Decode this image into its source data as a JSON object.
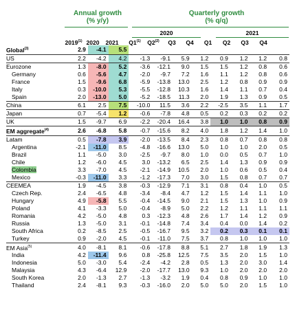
{
  "header": {
    "annual_title": "Annual growth\n(% y/y)",
    "quarterly_title": "Quarterly growth\n(% q/q)",
    "year_2020": "2020",
    "year_2021": "2021",
    "annual_cols": [
      {
        "label": "2019",
        "note": "(1)"
      },
      {
        "label": "2020",
        "note": ""
      },
      {
        "label": "2021",
        "note": ""
      }
    ],
    "quarter_cols": [
      {
        "label": "Q1",
        "note": "(1)"
      },
      {
        "label": "Q2",
        "note": "(2)"
      },
      {
        "label": "Q3",
        "note": ""
      },
      {
        "label": "Q4",
        "note": ""
      },
      {
        "label": "Q1",
        "note": ""
      },
      {
        "label": "Q2",
        "note": ""
      },
      {
        "label": "Q3",
        "note": ""
      },
      {
        "label": "Q4",
        "note": ""
      }
    ]
  },
  "rows": [
    {
      "label": "Global",
      "note": "(3)",
      "bold": true,
      "indent": false,
      "vals": [
        "2.9",
        "-4.1",
        "5.5",
        "",
        "",
        "",
        "",
        "",
        "",
        "",
        ""
      ]
    },
    {
      "label": "US",
      "note": "",
      "bold": false,
      "indent": false,
      "border": true,
      "vals": [
        "2.2",
        "-4.2",
        "4.2",
        "-1.3",
        "-9.1",
        "5.9",
        "1.2",
        "0.9",
        "1.2",
        "1.2",
        "0.8"
      ]
    },
    {
      "label": "Eurozone",
      "note": "",
      "bold": false,
      "indent": false,
      "border": true,
      "vals": [
        "1.3",
        "-8.0",
        "5.2",
        "-3.6",
        "-12.1",
        "9.0",
        "1.5",
        "1.5",
        "1.2",
        "0.8",
        "0.6"
      ]
    },
    {
      "label": "Germany",
      "note": "",
      "bold": false,
      "indent": true,
      "vals": [
        "0.6",
        "-5.6",
        "4.7",
        "-2.0",
        "-9.7",
        "7.2",
        "1.6",
        "1.1",
        "1.2",
        "0.8",
        "0.6"
      ]
    },
    {
      "label": "France",
      "note": "",
      "bold": false,
      "indent": true,
      "vals": [
        "1.5",
        "-9.6",
        "6.8",
        "-5.9",
        "-13.8",
        "13.0",
        "2.5",
        "1.2",
        "0.8",
        "0.9",
        "0.9"
      ]
    },
    {
      "label": "Italy",
      "note": "",
      "bold": false,
      "indent": true,
      "vals": [
        "0.3",
        "-10.0",
        "5.3",
        "-5.5",
        "-12.8",
        "10.3",
        "1.6",
        "1.4",
        "1.1",
        "0.7",
        "0.4"
      ]
    },
    {
      "label": "Spain",
      "note": "",
      "bold": false,
      "indent": true,
      "vals": [
        "2.0",
        "-13.0",
        "5.0",
        "-5.2",
        "-18.5",
        "11.3",
        "2.0",
        "1.9",
        "1.3",
        "0.9",
        "0.5"
      ]
    },
    {
      "label": "China",
      "note": "",
      "bold": false,
      "indent": false,
      "border": true,
      "vals": [
        "6.1",
        "2.5",
        "7.5",
        "-10.0",
        "11.5",
        "3.6",
        "2.2",
        "-2.5",
        "3.5",
        "1.1",
        "1.7"
      ]
    },
    {
      "label": "Japan",
      "note": "",
      "bold": false,
      "indent": false,
      "border": true,
      "vals": [
        "0.7",
        "-5.4",
        "1.2",
        "-0.6",
        "-7.8",
        "4.8",
        "0.5",
        "0.2",
        "0.3",
        "0.2",
        "0.2"
      ]
    },
    {
      "label": "UK",
      "note": "",
      "bold": false,
      "indent": false,
      "border": true,
      "vals": [
        "1.5",
        "-9.7",
        "6.9",
        "-2.2",
        "-20.4",
        "16.4",
        "3.8",
        "1.0",
        "1.0",
        "0.8",
        "0.9"
      ]
    },
    {
      "label": "EM aggregate",
      "note": "(4)",
      "bold": true,
      "indent": false,
      "border": true,
      "vals": [
        "2.6",
        "-6.8",
        "5.8",
        "-0.7",
        "-15.6",
        "8.2",
        "4.0",
        "1.8",
        "1.2",
        "1.4",
        "1.0"
      ]
    },
    {
      "label": "Latam",
      "note": "",
      "bold": false,
      "indent": false,
      "border": true,
      "vals": [
        "0.5",
        "-7.8",
        "3.9",
        "-2.0",
        "-13.5",
        "8.4",
        "2.3",
        "0.8",
        "0.7",
        "0.8",
        "0.8"
      ]
    },
    {
      "label": "Argentina",
      "note": "",
      "bold": false,
      "indent": true,
      "vals": [
        "-2.1",
        "-11.0",
        "8.5",
        "-4.8",
        "-16.6",
        "13.0",
        "5.0",
        "1.0",
        "1.0",
        "2.0",
        "0.5"
      ]
    },
    {
      "label": "Brazil",
      "note": "",
      "bold": false,
      "indent": true,
      "vals": [
        "1.1",
        "-5.0",
        "3.0",
        "-2.5",
        "-9.7",
        "8.0",
        "1.0",
        "0.0",
        "0.5",
        "0.7",
        "1.0"
      ]
    },
    {
      "label": "Chile",
      "note": "",
      "bold": false,
      "indent": true,
      "vals": [
        "1.2",
        "-6.0",
        "4.5",
        "3.0",
        "-13.2",
        "6.5",
        "2.5",
        "1.4",
        "1.3",
        "0.9",
        "0.9"
      ]
    },
    {
      "label": "Colombia",
      "note": "",
      "bold": false,
      "indent": true,
      "vals": [
        "3.3",
        "-7.0",
        "4.5",
        "-2.1",
        "-14.9",
        "10.5",
        "2.0",
        "1.0",
        "0.6",
        "0.5",
        "0.4"
      ]
    },
    {
      "label": "Mexico",
      "note": "",
      "bold": false,
      "indent": true,
      "vals": [
        "-0.3",
        "-11.0",
        "3.3",
        "-1.2",
        "-17.3",
        "7.0",
        "3.0",
        "1.5",
        "0.8",
        "0.7",
        "0.7"
      ]
    },
    {
      "label": "CEEMEA",
      "note": "",
      "bold": false,
      "indent": false,
      "border": true,
      "vals": [
        "1.9",
        "-4.5",
        "3.8",
        "-0.3",
        "-12.9",
        "7.1",
        "3.1",
        "0.8",
        "0.4",
        "1.0",
        "0.5"
      ]
    },
    {
      "label": "Czech Rep.",
      "note": "",
      "bold": false,
      "indent": true,
      "vals": [
        "2.4",
        "-6.5",
        "4.8",
        "-3.4",
        "-8.4",
        "4.7",
        "1.2",
        "1.5",
        "1.4",
        "1.1",
        "1.0"
      ]
    },
    {
      "label": "Hungary",
      "note": "",
      "bold": false,
      "indent": true,
      "vals": [
        "4.9",
        "-5.8",
        "5.5",
        "-0.4",
        "-14.5",
        "9.0",
        "2.1",
        "1.5",
        "1.3",
        "1.0",
        "0.9"
      ]
    },
    {
      "label": "Poland",
      "note": "",
      "bold": false,
      "indent": true,
      "vals": [
        "4.1",
        "-3.3",
        "5.0",
        "-0.4",
        "-8.9",
        "5.0",
        "2.2",
        "1.2",
        "1.1",
        "1.1",
        "1.1"
      ]
    },
    {
      "label": "Romania",
      "note": "",
      "bold": false,
      "indent": true,
      "vals": [
        "4.2",
        "-5.0",
        "4.8",
        "0.3",
        "-12.3",
        "4.8",
        "2.6",
        "1.7",
        "1.4",
        "1.2",
        "0.9"
      ]
    },
    {
      "label": "Russia",
      "note": "",
      "bold": false,
      "indent": true,
      "vals": [
        "1.3",
        "-5.0",
        "3.1",
        "-0.1",
        "-14.8",
        "7.4",
        "3.4",
        "0.4",
        "0.0",
        "1.4",
        "0.2"
      ]
    },
    {
      "label": "South Africa",
      "note": "",
      "bold": false,
      "indent": true,
      "vals": [
        "0.2",
        "-8.5",
        "2.5",
        "-0.5",
        "-16.7",
        "9.5",
        "3.2",
        "0.2",
        "0.3",
        "0.1",
        "0.1"
      ]
    },
    {
      "label": "Turkey",
      "note": "",
      "bold": false,
      "indent": true,
      "vals": [
        "0.9",
        "-2.0",
        "4.5",
        "-0.1",
        "-11.0",
        "7.5",
        "3.7",
        "0.8",
        "1.0",
        "1.0",
        "1.0"
      ]
    },
    {
      "label": "EM Asia",
      "note": "(5)",
      "bold": false,
      "indent": false,
      "border": true,
      "vals": [
        "4.0",
        "-8.1",
        "8.1",
        "-0.6",
        "-17.8",
        "8.8",
        "5.1",
        "2.7",
        "1.8",
        "1.9",
        "1.3"
      ]
    },
    {
      "label": "India",
      "note": "",
      "bold": false,
      "indent": true,
      "vals": [
        "4.2",
        "-11.4",
        "9.6",
        "0.8",
        "-25.8",
        "12.5",
        "7.5",
        "3.5",
        "2.0",
        "1.5",
        "1.0"
      ]
    },
    {
      "label": "Indonesia",
      "note": "",
      "bold": false,
      "indent": true,
      "vals": [
        "5.0",
        "-3.0",
        "5.4",
        "-2.4",
        "-4.2",
        "2.8",
        "0.5",
        "1.3",
        "2.0",
        "3.0",
        "1.4"
      ]
    },
    {
      "label": "Malaysia",
      "note": "",
      "bold": false,
      "indent": true,
      "vals": [
        "4.3",
        "-6.4",
        "12.9",
        "-2.0",
        "-17.7",
        "13.0",
        "9.3",
        "1.0",
        "2.0",
        "2.0",
        "2.0"
      ]
    },
    {
      "label": "South Korea",
      "note": "",
      "bold": false,
      "indent": true,
      "vals": [
        "2.0",
        "-1.3",
        "2.7",
        "-1.3",
        "-3.2",
        "1.9",
        "0.4",
        "0.8",
        "0.9",
        "1.0",
        "1.0"
      ]
    },
    {
      "label": "Thailand",
      "note": "",
      "bold": false,
      "indent": true,
      "vals": [
        "2.4",
        "-8.1",
        "9.3",
        "-0.3",
        "-16.0",
        "2.0",
        "5.0",
        "5.0",
        "2.0",
        "1.5",
        "1.0"
      ]
    }
  ],
  "highlight_colors": {
    "mint": "#9fdcd2",
    "lime": "#b7e07a",
    "sky": "#9dc7ea",
    "pink": "#f6b6b6",
    "yellow": "#f6e36b",
    "lavender": "#c5c7f0",
    "grey": "#bdbdbd",
    "header_green": "#2e8b3e"
  }
}
